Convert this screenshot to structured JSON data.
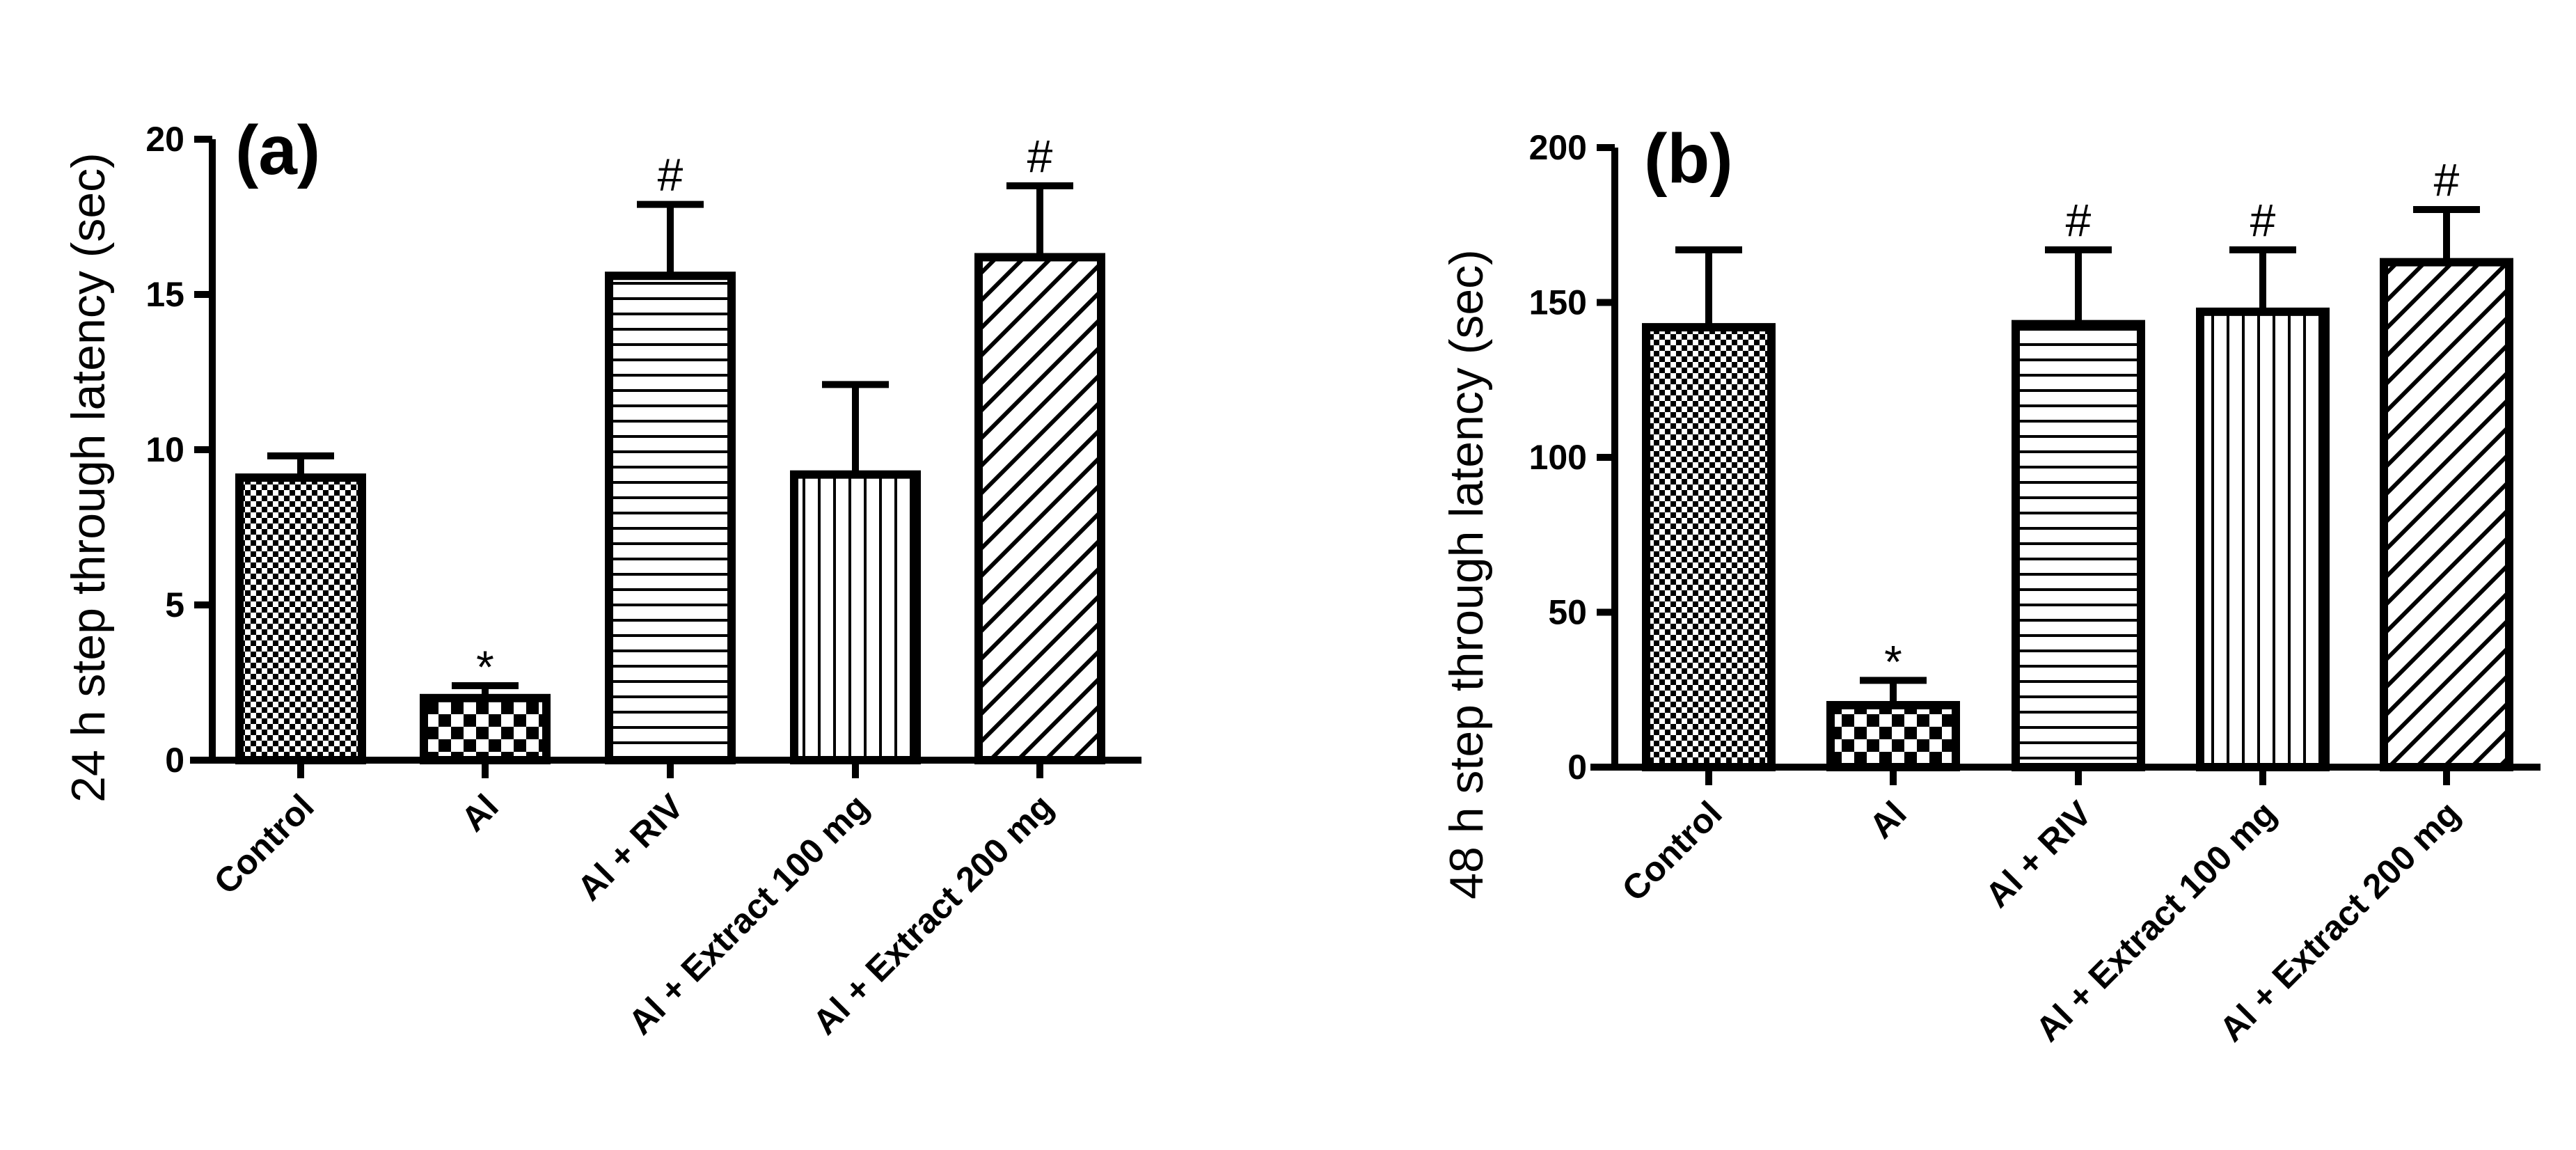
{
  "chart_data": [
    {
      "type": "bar",
      "panel_label": "(a)",
      "ylabel": "24 h step through latency (sec)",
      "xlabel": "",
      "ylim": [
        0,
        20
      ],
      "yticks": [
        0,
        5,
        10,
        15,
        20
      ],
      "categories": [
        "Control",
        "Al",
        "Al + RIV",
        "Al + Extract 100 mg",
        "Al + Extract 200 mg"
      ],
      "values": [
        9.1,
        2.0,
        15.6,
        9.2,
        16.2
      ],
      "errors": [
        0.7,
        0.4,
        2.3,
        2.9,
        2.3
      ],
      "patterns": [
        "checker-fine",
        "checker-coarse",
        "horizontal-lines",
        "vertical-lines",
        "diagonal-lines"
      ],
      "annotations": [
        "",
        "*",
        "#",
        "",
        "#"
      ]
    },
    {
      "type": "bar",
      "panel_label": "(b)",
      "ylabel": "48 h step through latency (sec)",
      "xlabel": "",
      "ylim": [
        0,
        200
      ],
      "yticks": [
        0,
        50,
        100,
        150,
        200
      ],
      "categories": [
        "Control",
        "Al",
        "Al + RIV",
        "Al + Extract 100 mg",
        "Al + Extract 200 mg"
      ],
      "values": [
        142,
        20,
        143,
        147,
        163
      ],
      "errors": [
        25,
        8,
        24,
        20,
        17
      ],
      "patterns": [
        "checker-fine",
        "checker-coarse",
        "horizontal-lines",
        "vertical-lines",
        "diagonal-lines"
      ],
      "annotations": [
        "",
        "*",
        "#",
        "#",
        "#"
      ]
    }
  ]
}
